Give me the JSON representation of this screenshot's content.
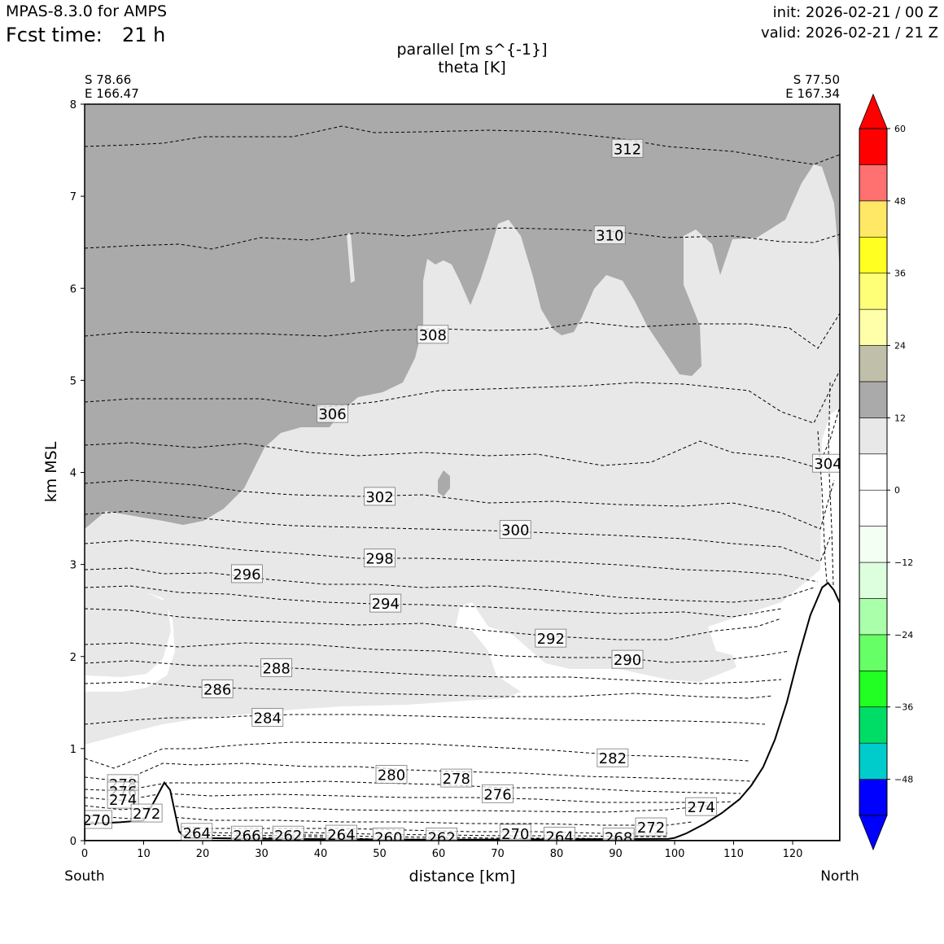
{
  "header": {
    "model": "MPAS-8.3.0 for AMPS",
    "fcst_label": "Fcst time:",
    "fcst_value": "21 h",
    "init": "init: 2026-02-21 / 00 Z",
    "valid": "valid: 2026-02-21 / 21 Z"
  },
  "chart_data": {
    "type": "cross-section contour",
    "title": "parallel [m s^{-1}]",
    "subtitle": "theta [K]",
    "xlabel": "distance [km]",
    "ylabel": "km MSL",
    "xlim": [
      0,
      128
    ],
    "ylim": [
      0,
      8
    ],
    "x_ticks": [
      0,
      10,
      20,
      30,
      40,
      50,
      60,
      70,
      80,
      90,
      100,
      110,
      120
    ],
    "y_ticks": [
      0,
      1,
      2,
      3,
      4,
      5,
      6,
      7,
      8
    ],
    "left_end": {
      "lat": "S 78.66",
      "lon": "E 166.47",
      "label": "South"
    },
    "right_end": {
      "lat": "S 77.50",
      "lon": "E 167.34",
      "label": "North"
    },
    "colorbar": {
      "levels": [
        -54,
        -48,
        -42,
        -36,
        -30,
        -24,
        -18,
        -12,
        -6,
        0,
        6,
        12,
        18,
        24,
        30,
        36,
        42,
        48,
        54,
        60
      ],
      "colors": [
        "#0000ff",
        "#00cccc",
        "#00dd66",
        "#22ff22",
        "#66ff66",
        "#aaffaa",
        "#ddffdd",
        "#f4fff4",
        "#ffffff",
        "#ffffff",
        "#e8e8e8",
        "#aaaaaa",
        "#bfbfaa",
        "#ffffaa",
        "#ffff77",
        "#ffff22",
        "#ffe866",
        "#ff7070",
        "#ff0000"
      ],
      "tick_labels": [
        "−48",
        "−36",
        "−24",
        "−12",
        "0",
        "12",
        "24",
        "36",
        "48",
        "60"
      ],
      "extend_under": "#0000ff",
      "extend_over": "#ff0000"
    },
    "terrain_km": [
      [
        0,
        0.18
      ],
      [
        6,
        0.2
      ],
      [
        10,
        0.22
      ],
      [
        12,
        0.45
      ],
      [
        13.5,
        0.63
      ],
      [
        14.5,
        0.55
      ],
      [
        16,
        0.1
      ],
      [
        17,
        0.03
      ],
      [
        30,
        0.02
      ],
      [
        60,
        0.01
      ],
      [
        99,
        0.02
      ],
      [
        100,
        0.03
      ],
      [
        102,
        0.08
      ],
      [
        105,
        0.18
      ],
      [
        108,
        0.3
      ],
      [
        111,
        0.45
      ],
      [
        113,
        0.6
      ],
      [
        115,
        0.8
      ],
      [
        117,
        1.1
      ],
      [
        119,
        1.5
      ],
      [
        121,
        2.0
      ],
      [
        123,
        2.45
      ],
      [
        125,
        2.75
      ],
      [
        126,
        2.8
      ],
      [
        127,
        2.72
      ],
      [
        128,
        2.58
      ]
    ],
    "theta_contour_labels": [
      {
        "value": "312",
        "x": 92,
        "y": 7.52
      },
      {
        "value": "310",
        "x": 89,
        "y": 6.58
      },
      {
        "value": "308",
        "x": 59,
        "y": 5.5
      },
      {
        "value": "306",
        "x": 42,
        "y": 4.64
      },
      {
        "value": "304",
        "x": 126,
        "y": 4.1
      },
      {
        "value": "302",
        "x": 50,
        "y": 3.74
      },
      {
        "value": "300",
        "x": 73,
        "y": 3.38
      },
      {
        "value": "298",
        "x": 50,
        "y": 3.07
      },
      {
        "value": "296",
        "x": 27.5,
        "y": 2.9
      },
      {
        "value": "294",
        "x": 51,
        "y": 2.58
      },
      {
        "value": "292",
        "x": 79,
        "y": 2.2
      },
      {
        "value": "290",
        "x": 92,
        "y": 1.97
      },
      {
        "value": "288",
        "x": 32.5,
        "y": 1.88
      },
      {
        "value": "286",
        "x": 22.5,
        "y": 1.65
      },
      {
        "value": "284",
        "x": 31,
        "y": 1.34
      },
      {
        "value": "282",
        "x": 89.5,
        "y": 0.9
      },
      {
        "value": "280",
        "x": 52,
        "y": 0.72
      },
      {
        "value": "278",
        "x": 63,
        "y": 0.68
      },
      {
        "value": "278",
        "x": 6.5,
        "y": 0.62
      },
      {
        "value": "276",
        "x": 70,
        "y": 0.51
      },
      {
        "value": "276",
        "x": 6.5,
        "y": 0.54
      },
      {
        "value": "274",
        "x": 104.5,
        "y": 0.37
      },
      {
        "value": "274",
        "x": 6.5,
        "y": 0.45
      },
      {
        "value": "272",
        "x": 10.5,
        "y": 0.3
      },
      {
        "value": "272",
        "x": 96,
        "y": 0.15
      },
      {
        "value": "270",
        "x": 2,
        "y": 0.23
      },
      {
        "value": "270",
        "x": 73,
        "y": 0.08
      },
      {
        "value": "268",
        "x": 90.5,
        "y": 0.04
      },
      {
        "value": "266",
        "x": 27.5,
        "y": 0.06
      },
      {
        "value": "264",
        "x": 19,
        "y": 0.09
      },
      {
        "value": "264",
        "x": 43.5,
        "y": 0.07
      },
      {
        "value": "264",
        "x": 80.5,
        "y": 0.05
      },
      {
        "value": "262",
        "x": 34.5,
        "y": 0.06
      },
      {
        "value": "262",
        "x": 60.5,
        "y": 0.04
      },
      {
        "value": "260",
        "x": 51.5,
        "y": 0.04
      }
    ]
  }
}
